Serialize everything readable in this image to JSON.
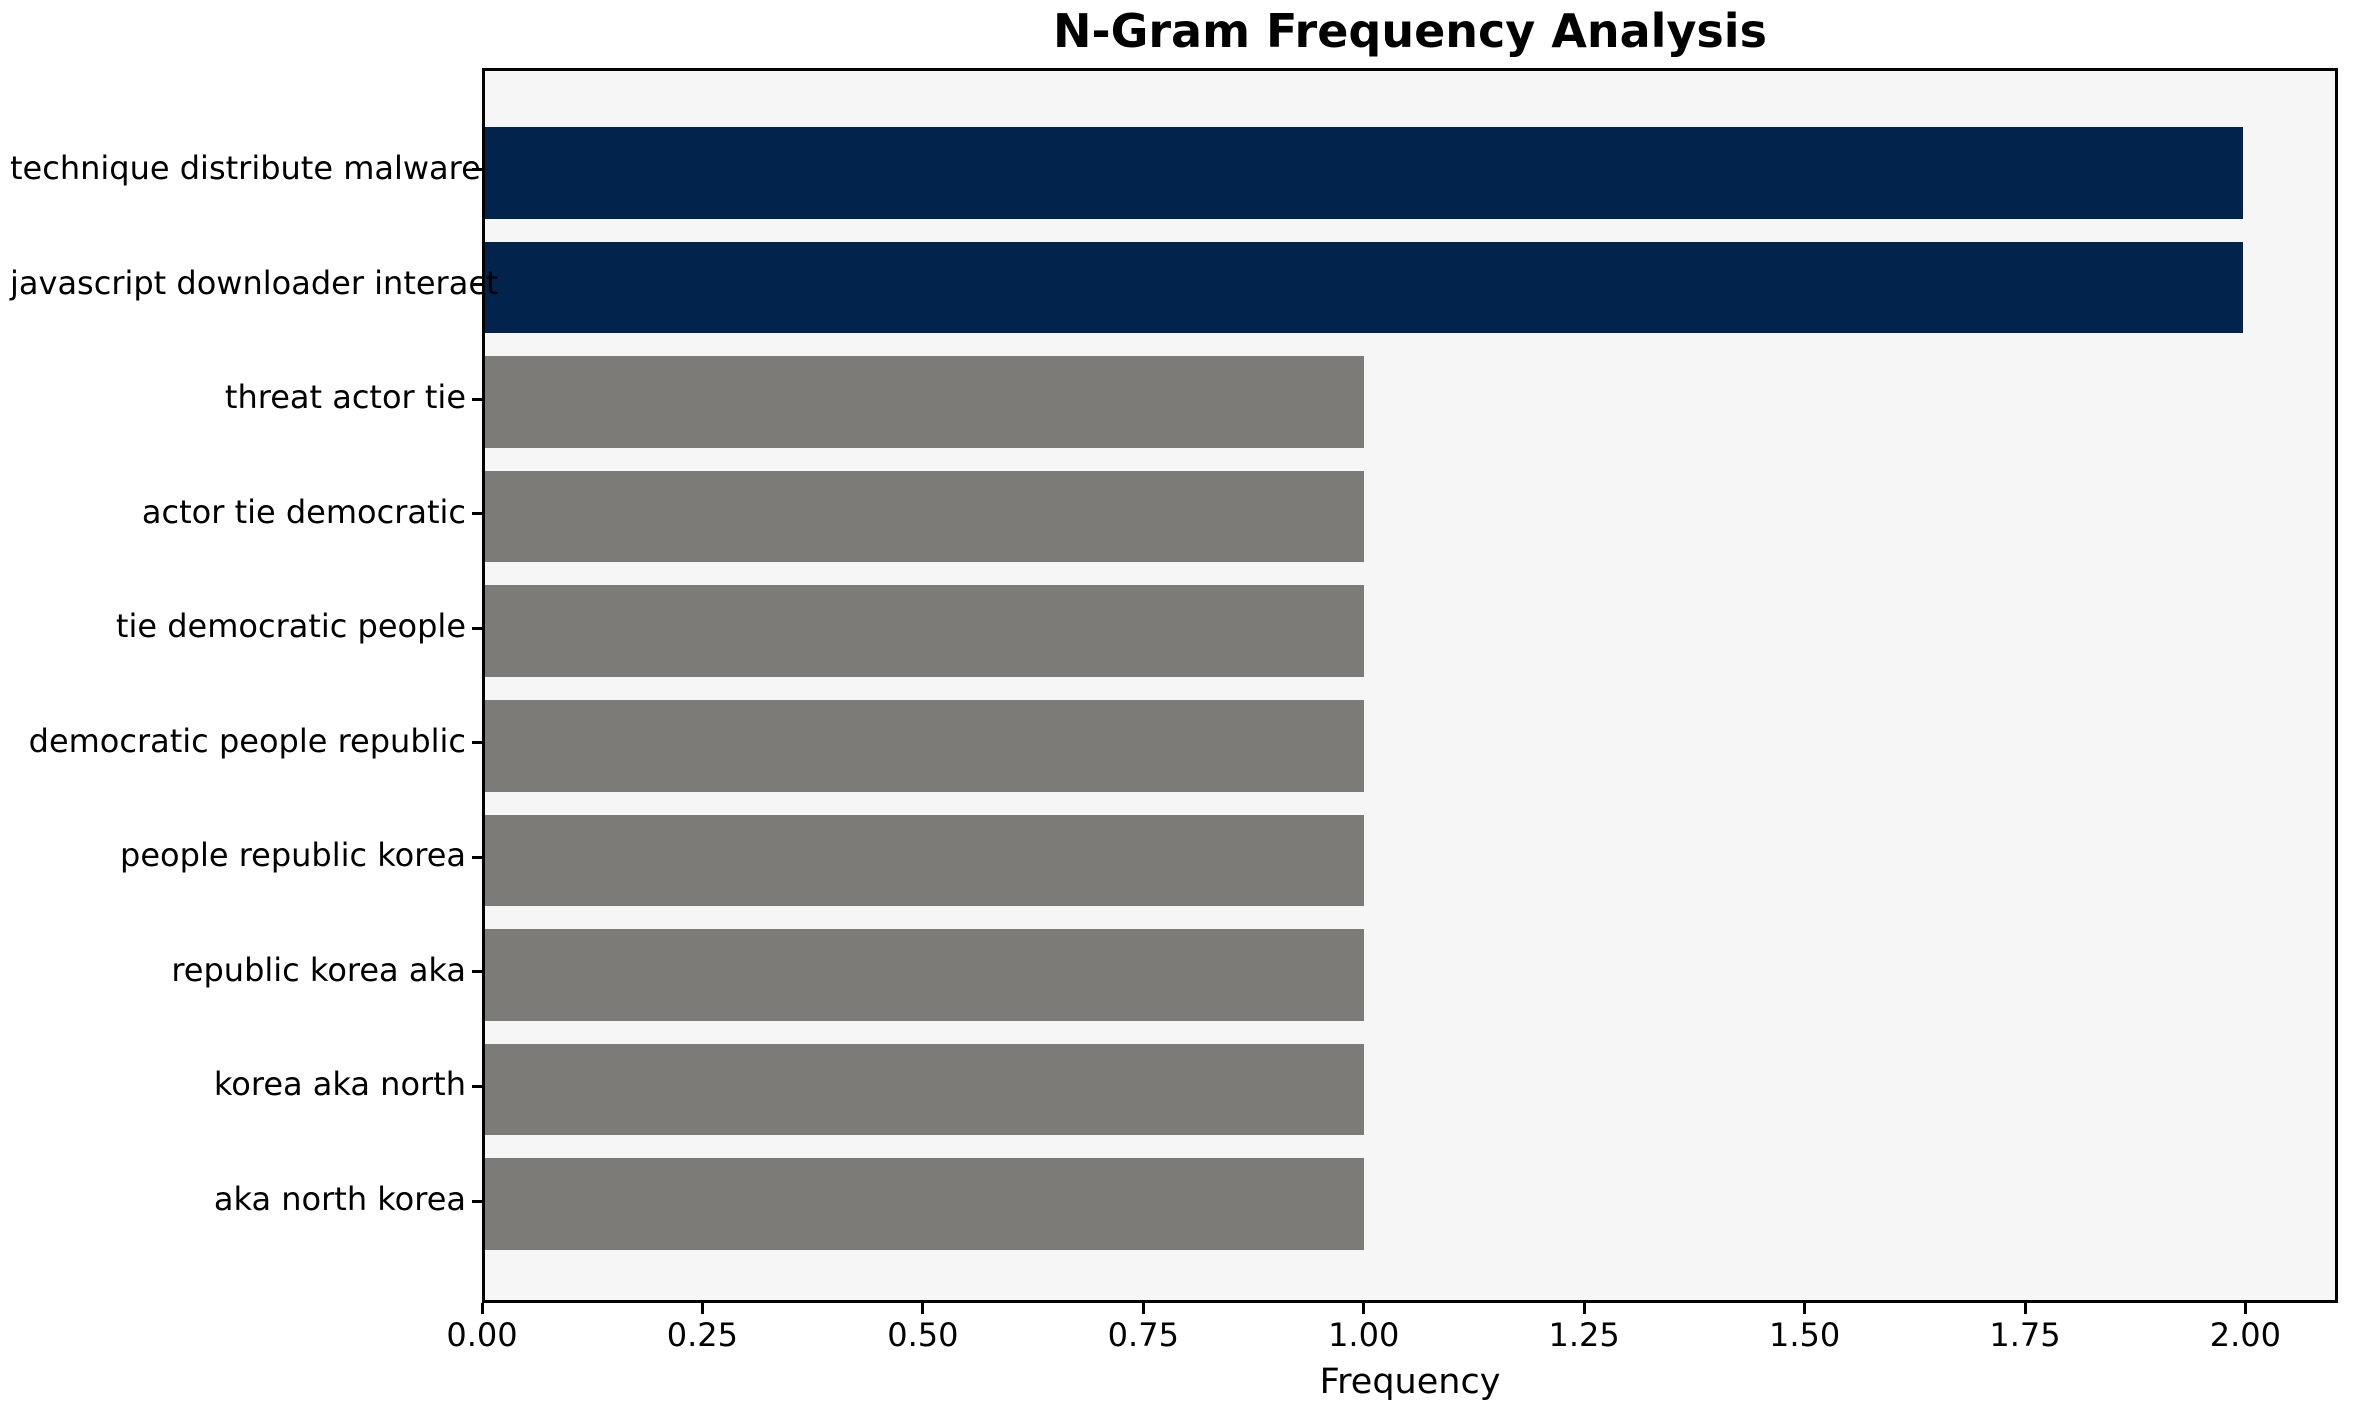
{
  "chart_data": {
    "type": "bar",
    "orientation": "horizontal",
    "title": "N-Gram Frequency Analysis",
    "xlabel": "Frequency",
    "ylabel": "",
    "categories": [
      "technique distribute malware",
      "javascript downloader interact",
      "threat actor tie",
      "actor tie democratic",
      "tie democratic people",
      "democratic people republic",
      "people republic korea",
      "republic korea aka",
      "korea aka north",
      "aka north korea"
    ],
    "values": [
      2,
      2,
      1,
      1,
      1,
      1,
      1,
      1,
      1,
      1
    ],
    "bar_colors": [
      "#02234c",
      "#02234c",
      "#7c7b77",
      "#7c7b77",
      "#7c7b77",
      "#7c7b77",
      "#7c7b77",
      "#7c7b77",
      "#7c7b77",
      "#7c7b77"
    ],
    "xlim": [
      0,
      2.105
    ],
    "x_ticks": [
      0,
      0.25,
      0.5,
      0.75,
      1.0,
      1.25,
      1.5,
      1.75,
      2.0
    ],
    "x_tick_labels": [
      "0.00",
      "0.25",
      "0.50",
      "0.75",
      "1.00",
      "1.25",
      "1.50",
      "1.75",
      "2.00"
    ],
    "grid": false,
    "legend_position": "none",
    "colors": {
      "highlight_bar": "#02234c",
      "default_bar": "#7c7b77",
      "plot_background": "#f7f6f6",
      "figure_background": "#ffffff",
      "axis_spine": "#000000",
      "text": "#000000"
    }
  }
}
